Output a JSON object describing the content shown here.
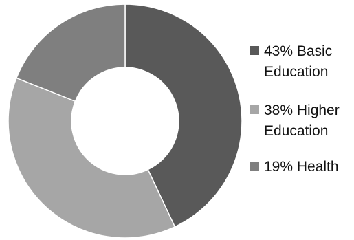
{
  "chart_data": {
    "type": "pie",
    "variant": "donut",
    "title": "",
    "categories": [
      "Basic Education",
      "Higher Education",
      "Health"
    ],
    "values": [
      43,
      38,
      19
    ],
    "unit": "%",
    "colors": [
      "#595959",
      "#a6a6a6",
      "#7f7f7f"
    ],
    "slice_border_color": "#ffffff",
    "legend_position": "right",
    "legend": [
      {
        "lines": [
          "43% Basic",
          "Education"
        ],
        "color": "#595959"
      },
      {
        "lines": [
          "38% Higher",
          "Education"
        ],
        "color": "#a6a6a6"
      },
      {
        "lines": [
          "19% Health"
        ],
        "color": "#7f7f7f"
      }
    ]
  }
}
